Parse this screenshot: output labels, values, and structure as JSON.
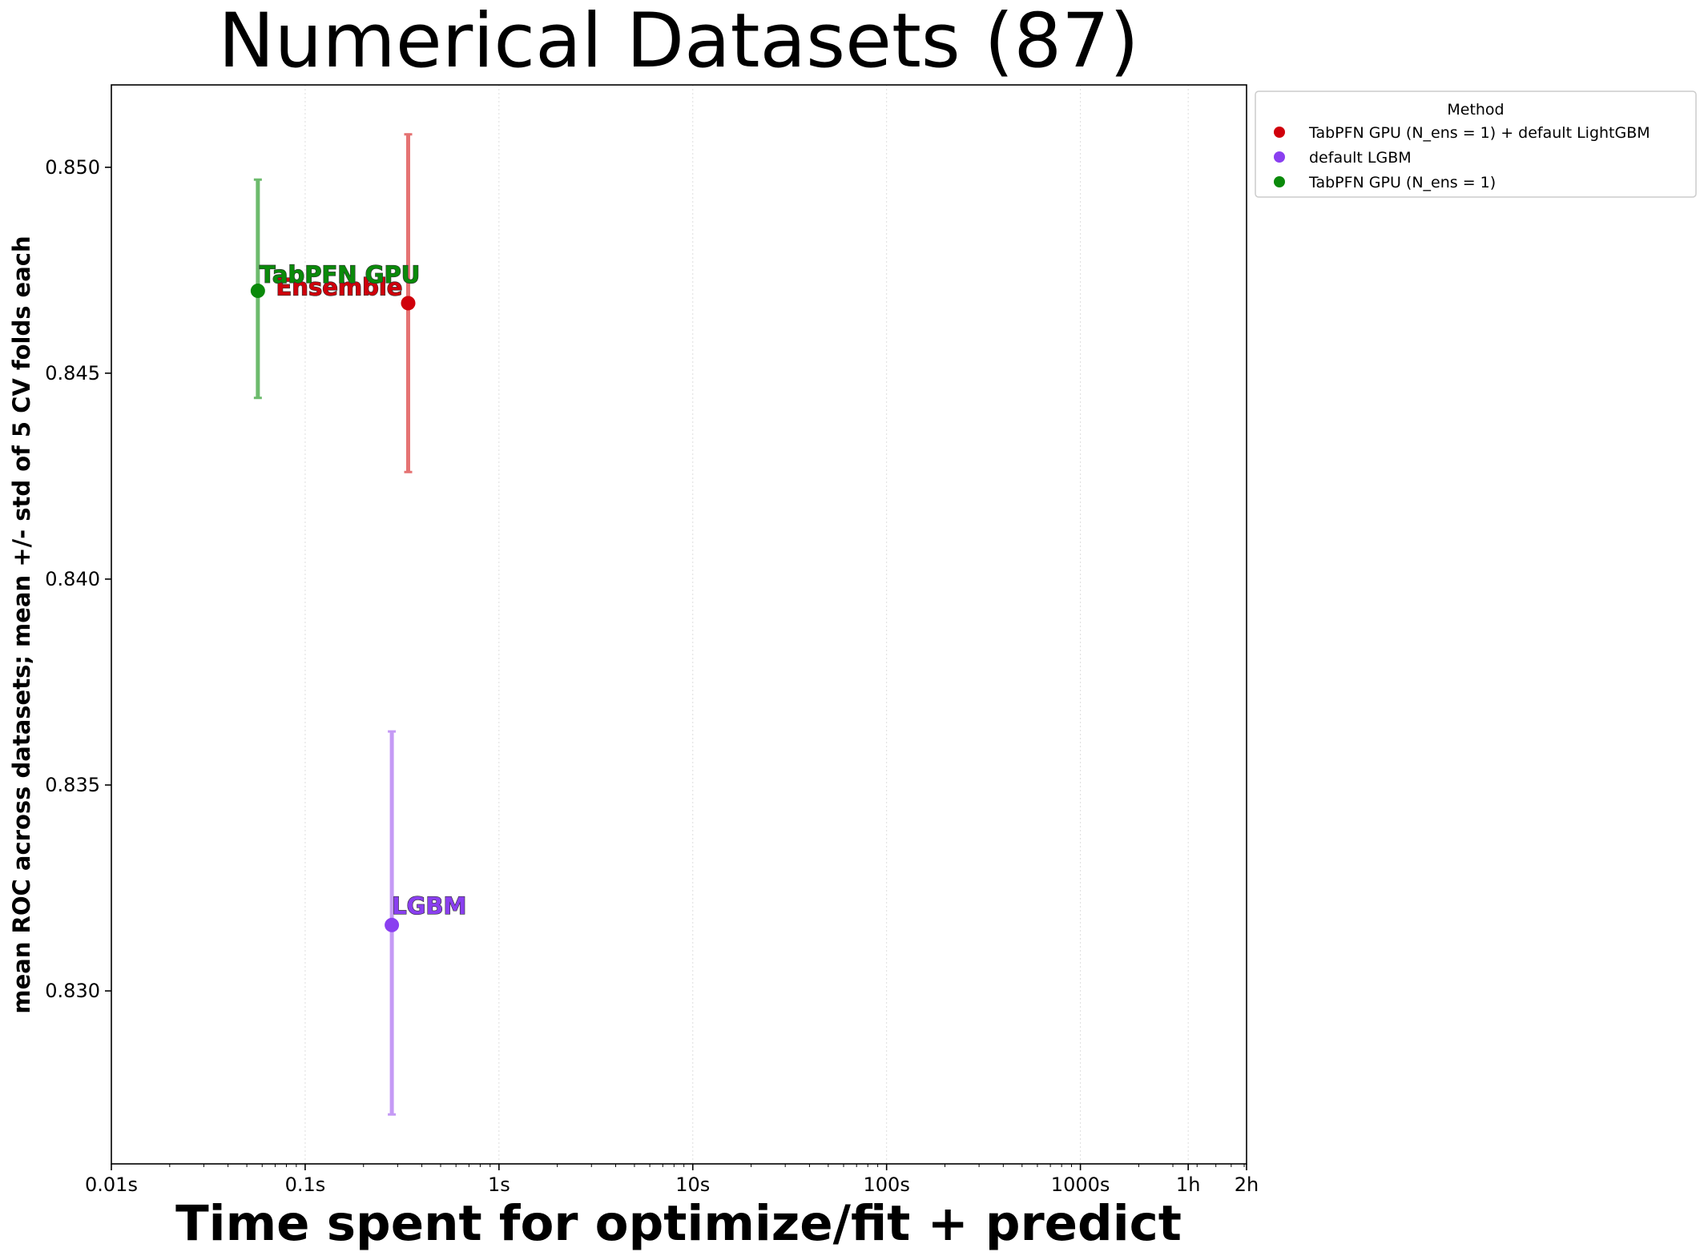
{
  "chart_data": {
    "type": "scatter",
    "title": "Numerical Datasets (87)",
    "xlabel": "Time spent for optimize/fit + predict",
    "ylabel": "mean ROC across datasets; mean +/- std of 5 CV folds each",
    "xscale": "log",
    "xlim": [
      0.01,
      7200
    ],
    "ylim": [
      0.8258,
      0.852
    ],
    "grid": "vertical dotted (x only)",
    "x_ticks": [
      {
        "value": 0.01,
        "label": "0.01s"
      },
      {
        "value": 0.1,
        "label": "0.1s"
      },
      {
        "value": 1,
        "label": "1s"
      },
      {
        "value": 10,
        "label": "10s"
      },
      {
        "value": 100,
        "label": "100s"
      },
      {
        "value": 1000,
        "label": "1000s"
      },
      {
        "value": 3600,
        "label": "1h"
      },
      {
        "value": 7200,
        "label": "2h"
      }
    ],
    "y_ticks": [
      {
        "value": 0.83,
        "label": "0.830"
      },
      {
        "value": 0.835,
        "label": "0.835"
      },
      {
        "value": 0.84,
        "label": "0.840"
      },
      {
        "value": 0.845,
        "label": "0.845"
      },
      {
        "value": 0.85,
        "label": "0.850"
      }
    ],
    "legend": {
      "title": "Method",
      "placement": "outside upper right"
    },
    "series": [
      {
        "name": "TabPFN GPU (N_ens =  1) + default LightGBM",
        "short_label": "Ensemble",
        "color": "#d0000b",
        "errorbar_color": "#e57373",
        "x": 0.34,
        "y": 0.8467,
        "y_low": 0.8426,
        "y_high": 0.8508
      },
      {
        "name": "default LGBM",
        "short_label": "LGBM",
        "color": "#8a3ff0",
        "errorbar_color": "#c59af5",
        "x": 0.28,
        "y": 0.8316,
        "y_low": 0.827,
        "y_high": 0.8363
      },
      {
        "name": "TabPFN GPU (N_ens =  1)",
        "short_label": "TabPFN GPU",
        "color": "#0a8a0a",
        "errorbar_color": "#6dbb6d",
        "x": 0.057,
        "y": 0.847,
        "y_low": 0.8444,
        "y_high": 0.8497
      }
    ]
  }
}
